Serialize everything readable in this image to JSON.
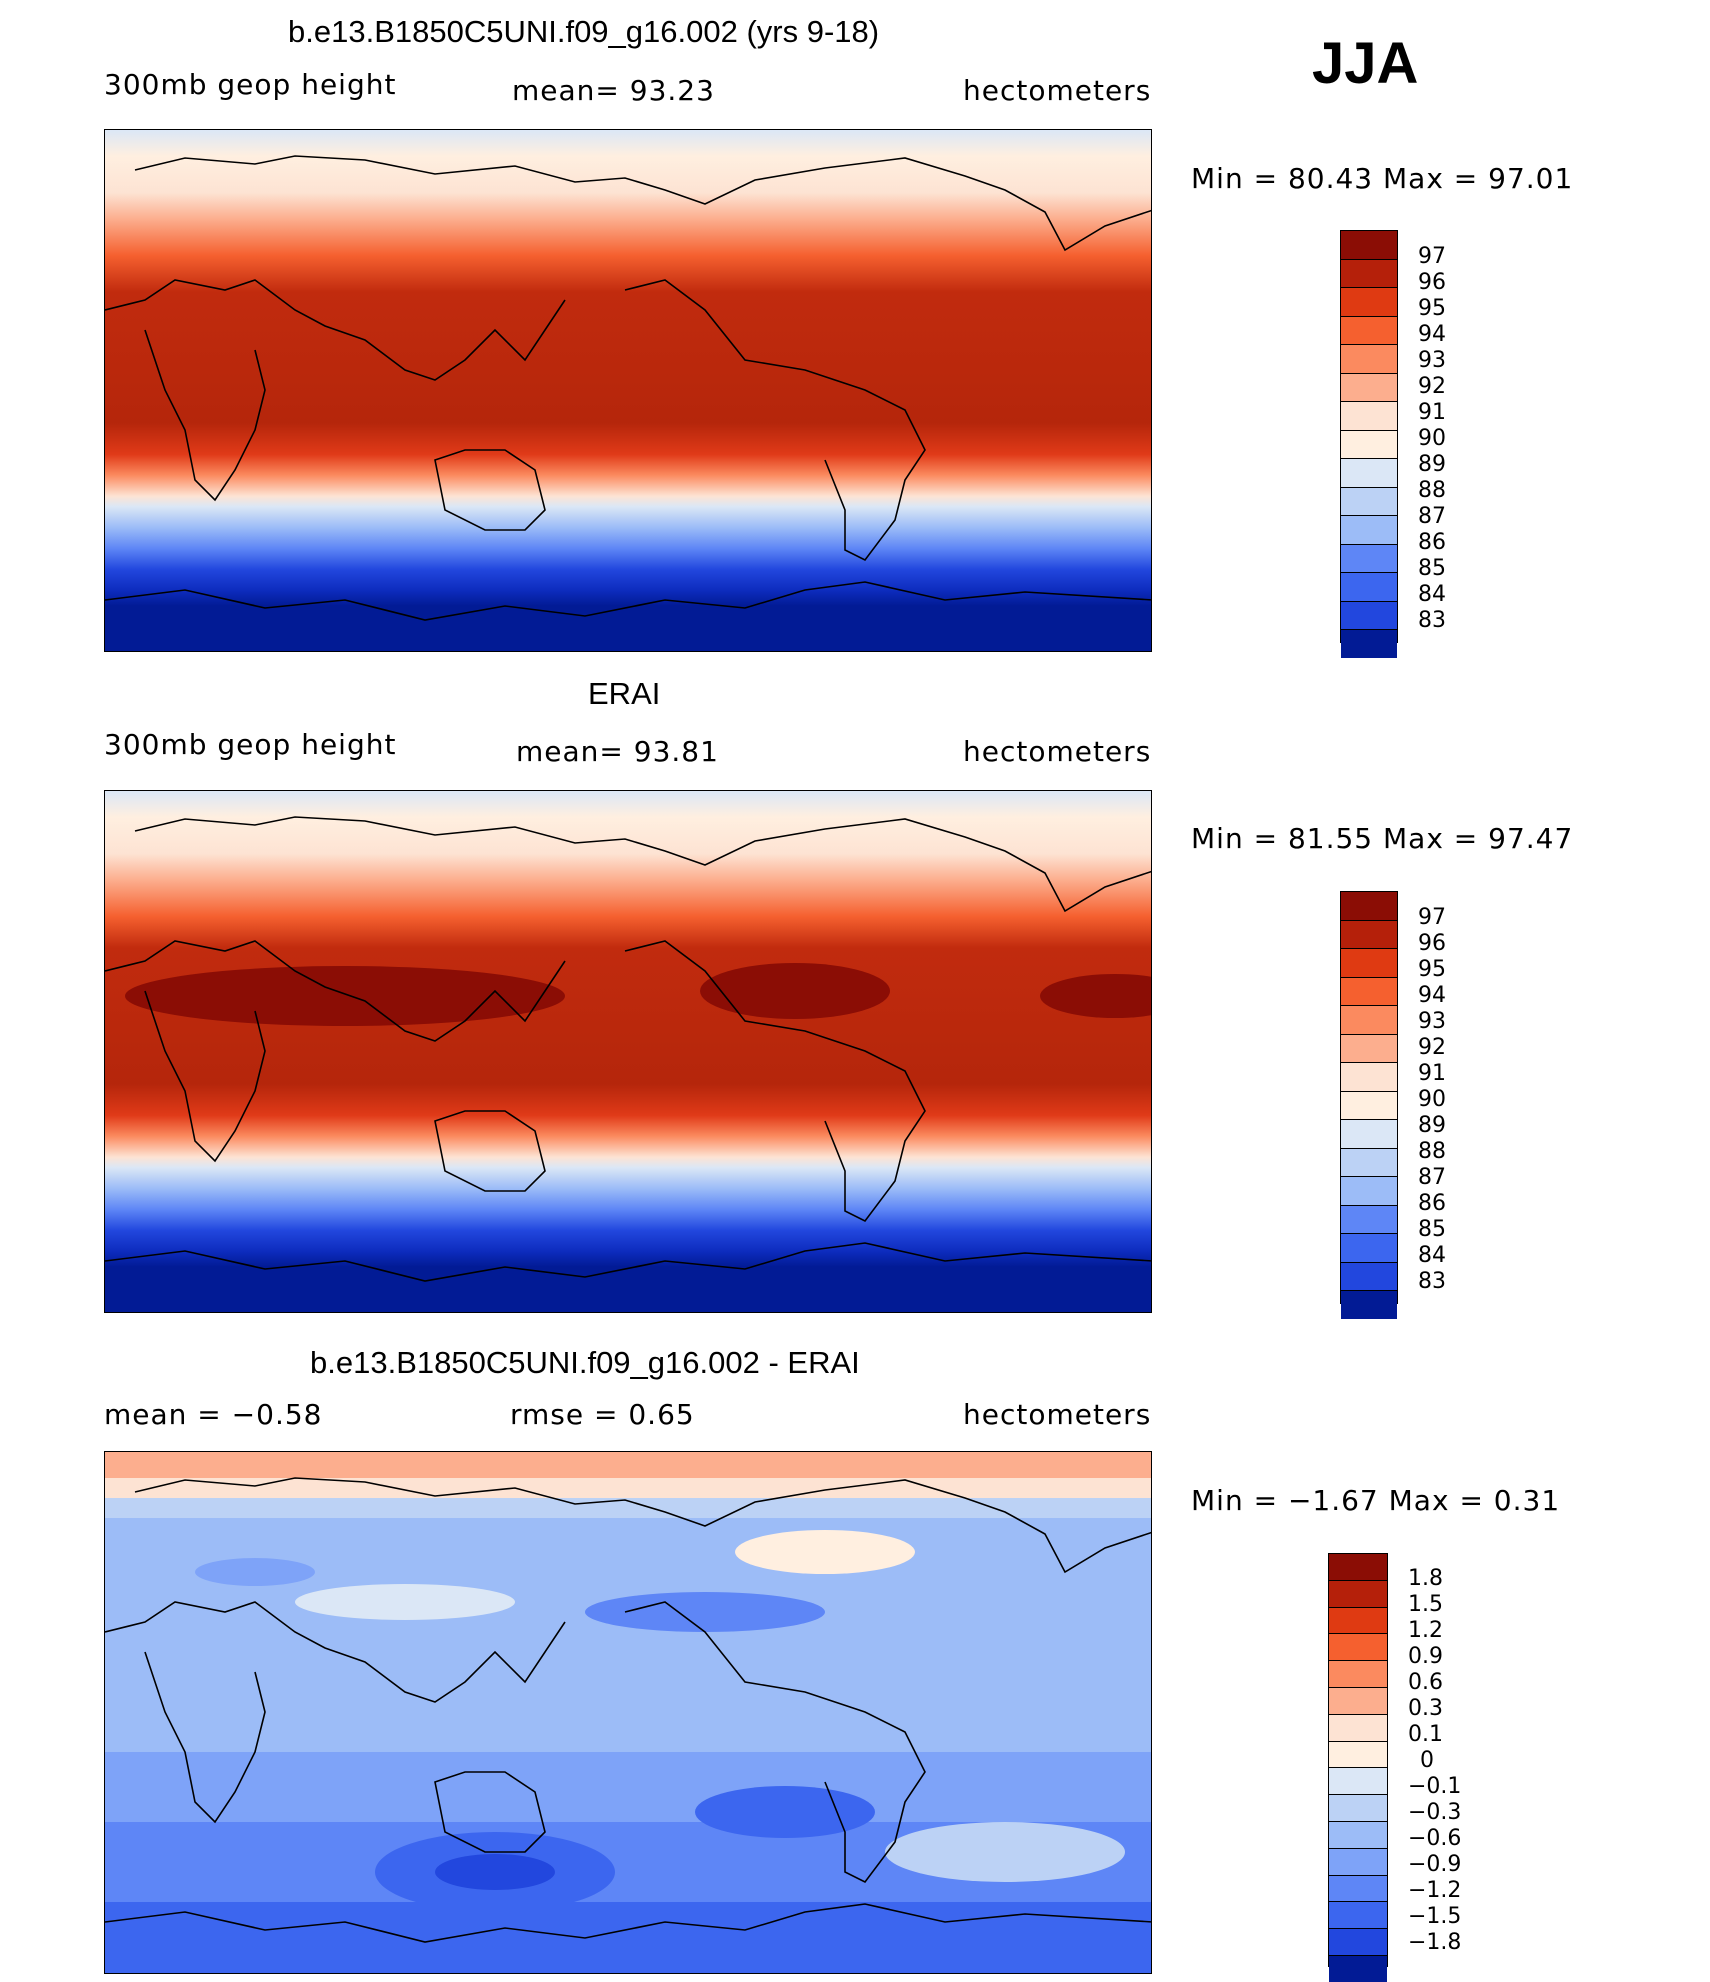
{
  "season": "JJA",
  "colors": {
    "warm": [
      "#fde3d3",
      "#fccab0",
      "#fcae8e",
      "#fb8a5f",
      "#f5602f",
      "#e03a18",
      "#c12b0e",
      "#a5210a",
      "#8b0d05"
    ],
    "neutral": "#ffefe0",
    "cool": [
      "#dbe7f6",
      "#bcd2f5",
      "#9cbcf7",
      "#7ea3f8",
      "#5e86f6",
      "#3c66ef",
      "#2247de",
      "#0d2cbe",
      "#021b95"
    ],
    "diff": [
      "#8b0d05",
      "#b5200a",
      "#df3a12",
      "#f5602f",
      "#fb8a5f",
      "#fcae8e",
      "#fde3d3",
      "#ffefe0",
      "#dbe7f6",
      "#bcd2f5",
      "#9cbcf7",
      "#7ea3f8",
      "#5e86f6",
      "#3c66ef",
      "#2247de",
      "#0d2cbe",
      "#021b95"
    ]
  },
  "panels": [
    {
      "title": "b.e13.B1850C5UNI.f09_g16.002 (yrs 9-18)",
      "left": "300mb  geop  height",
      "center": "mean=   93.23",
      "right": "hectometers",
      "minmax": "Min  =    80.43  Max  =    97.01",
      "legend": [
        "97",
        "96",
        "95",
        "94",
        "93",
        "92",
        "91",
        "90",
        "89",
        "88",
        "87",
        "86",
        "85",
        "84",
        "83"
      ]
    },
    {
      "title": "ERAI",
      "left": "300mb  geop  height",
      "center": "mean=   93.81",
      "right": "hectometers",
      "minmax": "Min  =    81.55  Max  =    97.47",
      "legend": [
        "97",
        "96",
        "95",
        "94",
        "93",
        "92",
        "91",
        "90",
        "89",
        "88",
        "87",
        "86",
        "85",
        "84",
        "83"
      ]
    },
    {
      "title": "b.e13.B1850C5UNI.f09_g16.002 - ERAI",
      "left": "mean  =    −0.58",
      "center": "rmse  =     0.65",
      "right": "hectometers",
      "minmax": "Min  =    −1.67  Max  =      0.31",
      "legend": [
        "1.8",
        "1.5",
        "1.2",
        "0.9",
        "0.6",
        "0.3",
        "0.1",
        "0",
        "−0.1",
        "−0.3",
        "−0.6",
        "−0.9",
        "−1.2",
        "−1.5",
        "−1.8"
      ]
    }
  ]
}
